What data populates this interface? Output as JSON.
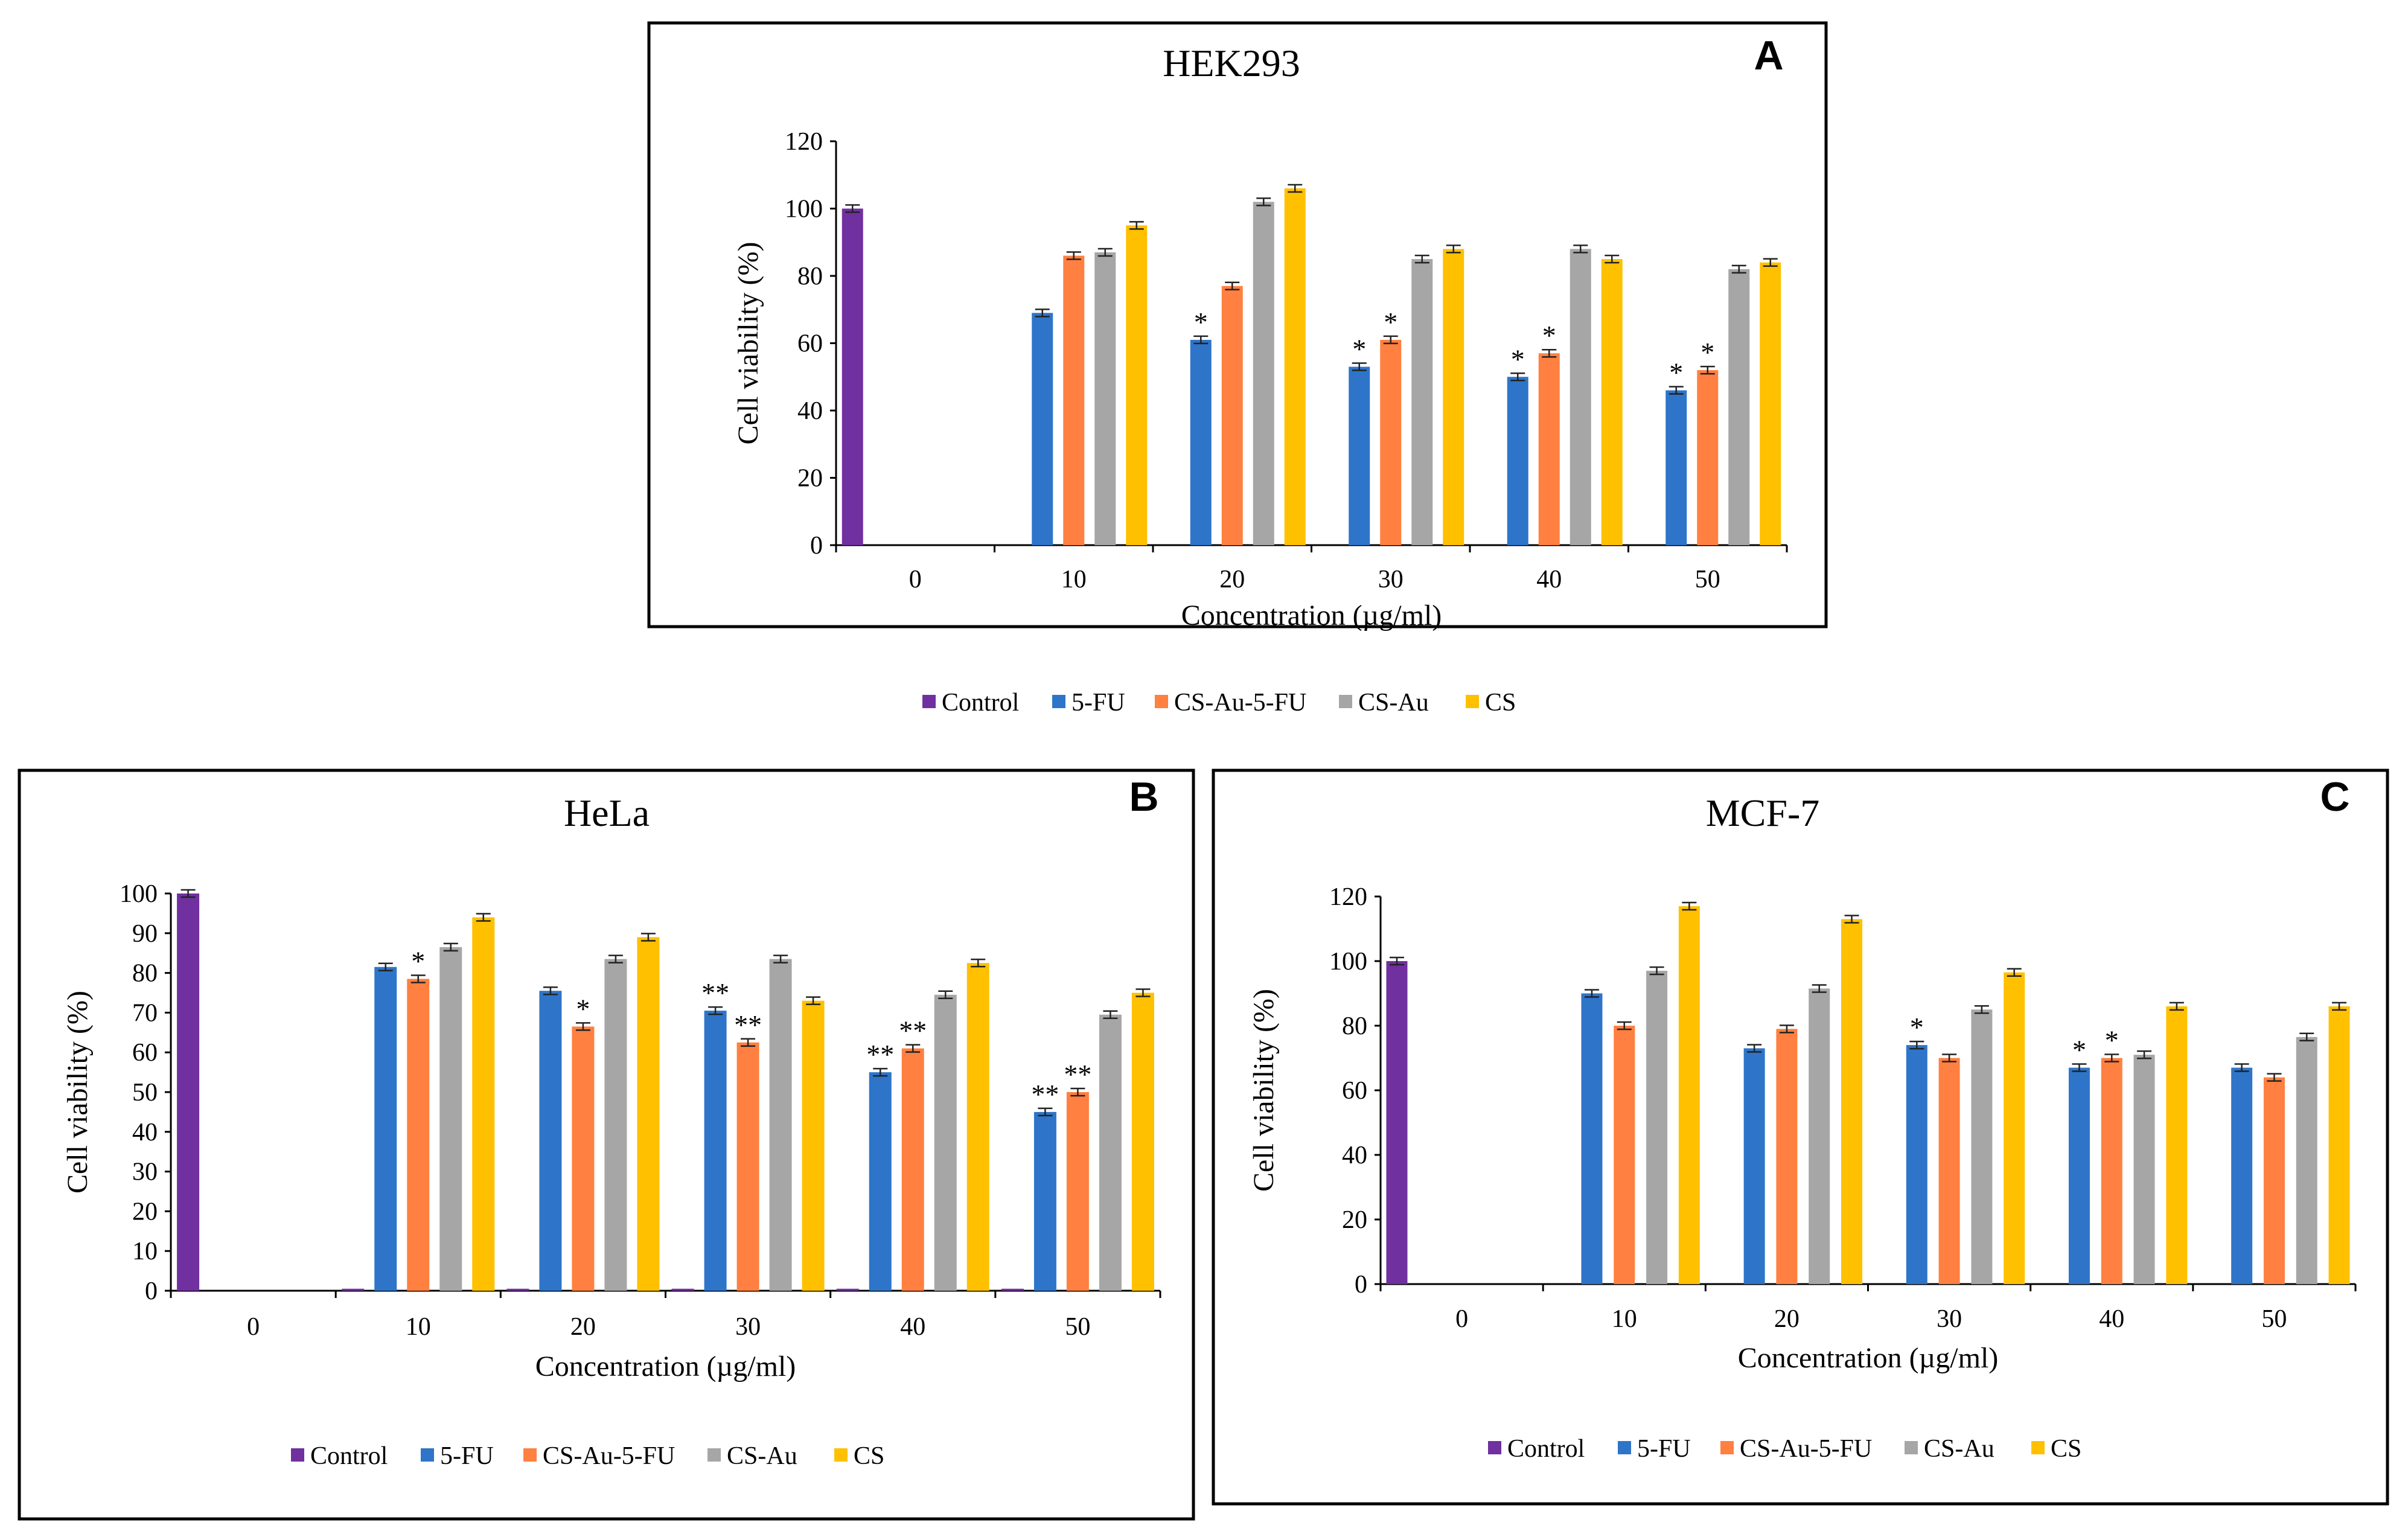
{
  "colors": {
    "Control": "#7030a0",
    "5-FU": "#2e75c9",
    "CS-Au-5-FU": "#ff8040",
    "CS-Au": "#a6a6a6",
    "CS": "#ffc000"
  },
  "chart_data": [
    {
      "type": "bar",
      "panel_label": "A",
      "title": "HEK293",
      "xlabel": "Concentration (µg/ml)",
      "ylabel": "Cell viability (%)",
      "categories": [
        "0",
        "10",
        "20",
        "30",
        "40",
        "50"
      ],
      "ylim": [
        0,
        120
      ],
      "yticks": [
        "0",
        "20",
        "40",
        "60",
        "80",
        "100",
        "120"
      ],
      "legend": [
        "Control",
        "5-FU",
        "CS-Au-5-FU",
        "CS-Au",
        "CS"
      ],
      "series": [
        {
          "name": "Control",
          "values": [
            100,
            null,
            null,
            null,
            null,
            null
          ]
        },
        {
          "name": "5-FU",
          "values": [
            null,
            69,
            61,
            53,
            50,
            46
          ]
        },
        {
          "name": "CS-Au-5-FU",
          "values": [
            null,
            86,
            77,
            61,
            57,
            52
          ]
        },
        {
          "name": "CS-Au",
          "values": [
            null,
            87,
            102,
            85,
            88,
            82
          ]
        },
        {
          "name": "CS",
          "values": [
            null,
            95,
            106,
            88,
            85,
            84
          ]
        }
      ],
      "annotations": [
        {
          "series": "5-FU",
          "category": "20",
          "text": "*"
        },
        {
          "series": "5-FU",
          "category": "30",
          "text": "*"
        },
        {
          "series": "CS-Au-5-FU",
          "category": "30",
          "text": "*"
        },
        {
          "series": "5-FU",
          "category": "40",
          "text": "*"
        },
        {
          "series": "CS-Au-5-FU",
          "category": "40",
          "text": "*"
        },
        {
          "series": "5-FU",
          "category": "50",
          "text": "*"
        },
        {
          "series": "CS-Au-5-FU",
          "category": "50",
          "text": "*"
        }
      ]
    },
    {
      "type": "bar",
      "panel_label": "B",
      "title": "HeLa",
      "xlabel": "Concentration (µg/ml)",
      "ylabel": "Cell viability (%)",
      "categories": [
        "0",
        "10",
        "20",
        "30",
        "40",
        "50"
      ],
      "ylim": [
        0,
        100
      ],
      "yticks": [
        "0",
        "10",
        "20",
        "30",
        "40",
        "50",
        "60",
        "70",
        "80",
        "90",
        "100"
      ],
      "legend": [
        "Control",
        "5-FU",
        "CS-Au-5-FU",
        "CS-Au",
        "CS"
      ],
      "series": [
        {
          "name": "Control",
          "values": [
            100,
            0.5,
            0.5,
            0.5,
            0.5,
            0.5
          ]
        },
        {
          "name": "5-FU",
          "values": [
            null,
            81.5,
            75.5,
            70.5,
            55,
            45
          ]
        },
        {
          "name": "CS-Au-5-FU",
          "values": [
            null,
            78.5,
            66.5,
            62.5,
            61,
            50
          ]
        },
        {
          "name": "CS-Au",
          "values": [
            null,
            86.5,
            83.5,
            83.5,
            74.5,
            69.5
          ]
        },
        {
          "name": "CS",
          "values": [
            null,
            94,
            89,
            73,
            82.5,
            75
          ]
        }
      ],
      "annotations": [
        {
          "series": "CS-Au-5-FU",
          "category": "10",
          "text": "*"
        },
        {
          "series": "CS-Au-5-FU",
          "category": "20",
          "text": "*"
        },
        {
          "series": "5-FU",
          "category": "30",
          "text": "**"
        },
        {
          "series": "CS-Au-5-FU",
          "category": "30",
          "text": "**"
        },
        {
          "series": "5-FU",
          "category": "40",
          "text": "**"
        },
        {
          "series": "CS-Au-5-FU",
          "category": "40",
          "text": "**"
        },
        {
          "series": "5-FU",
          "category": "50",
          "text": "**"
        },
        {
          "series": "CS-Au-5-FU",
          "category": "50",
          "text": "**"
        }
      ]
    },
    {
      "type": "bar",
      "panel_label": "C",
      "title": "MCF-7",
      "xlabel": "Concentration (µg/ml)",
      "ylabel": "Cell viability (%)",
      "categories": [
        "0",
        "10",
        "20",
        "30",
        "40",
        "50"
      ],
      "ylim": [
        0,
        120
      ],
      "yticks": [
        "0",
        "20",
        "40",
        "60",
        "80",
        "100",
        "120"
      ],
      "legend": [
        "Control",
        "5-FU",
        "CS-Au-5-FU",
        "CS-Au",
        "CS"
      ],
      "series": [
        {
          "name": "Control",
          "values": [
            100,
            null,
            null,
            null,
            null,
            null
          ]
        },
        {
          "name": "5-FU",
          "values": [
            null,
            90,
            73,
            74,
            67,
            67
          ]
        },
        {
          "name": "CS-Au-5-FU",
          "values": [
            null,
            80,
            79,
            70,
            70,
            64
          ]
        },
        {
          "name": "CS-Au",
          "values": [
            null,
            97,
            91.5,
            85,
            71,
            76.5
          ]
        },
        {
          "name": "CS",
          "values": [
            null,
            117,
            113,
            96.5,
            86,
            86
          ]
        }
      ],
      "annotations": [
        {
          "series": "5-FU",
          "category": "30",
          "text": "*"
        },
        {
          "series": "5-FU",
          "category": "40",
          "text": "*"
        },
        {
          "series": "CS-Au-5-FU",
          "category": "40",
          "text": "*"
        }
      ]
    }
  ]
}
